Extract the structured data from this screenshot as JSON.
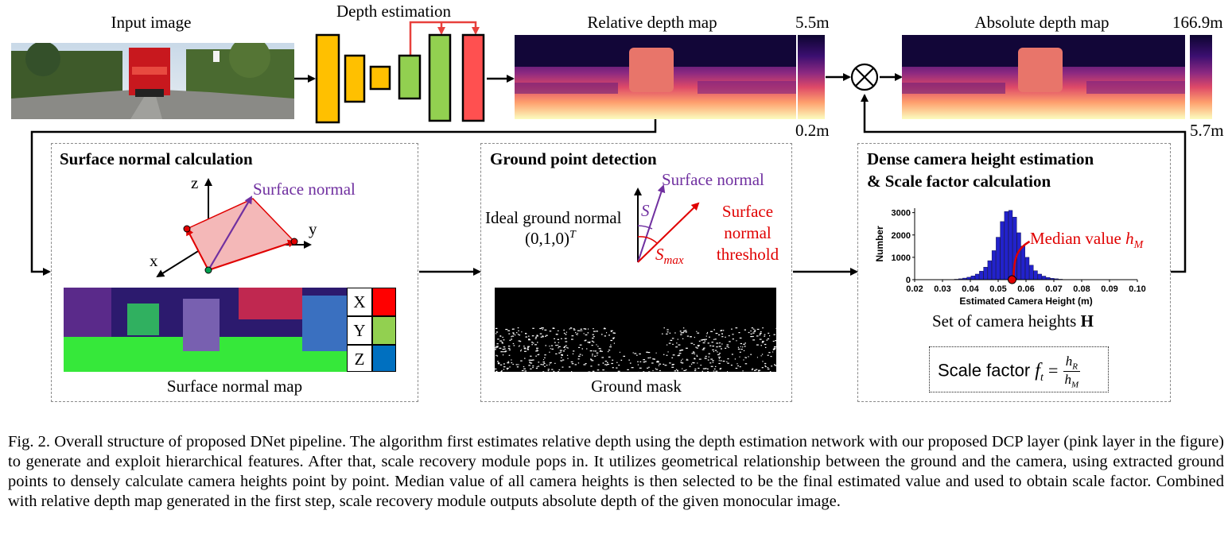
{
  "top": {
    "input_image": "Input image",
    "depth_estimation": "Depth estimation",
    "relative_depth_map": "Relative depth map",
    "relative_max": "5.5m",
    "relative_min": "0.2m",
    "absolute_depth_map": "Absolute depth map",
    "absolute_max": "166.9m",
    "absolute_min": "5.7m",
    "multiply_symbol": "⊗"
  },
  "surface_normal": {
    "title": "Surface normal calculation",
    "axis_z": "z",
    "axis_y": "y",
    "axis_x": "x",
    "normal_label": "Surface normal",
    "map_label": "Surface normal map",
    "legend": [
      {
        "letter": "X",
        "color": "#ff0000"
      },
      {
        "letter": "Y",
        "color": "#92d050"
      },
      {
        "letter": "Z",
        "color": "#0070c0"
      }
    ]
  },
  "ground_point": {
    "title": "Ground point detection",
    "ideal_normal": "Ideal ground normal",
    "ideal_vector": "(0,1,0)",
    "ideal_sup": "T",
    "surface_normal": "Surface normal",
    "s_label": "S",
    "smax_label": "S",
    "smax_sub": "max",
    "threshold_line1": "Surface",
    "threshold_line2": "normal",
    "threshold_line3": "threshold",
    "mask_label": "Ground mask"
  },
  "camera_height": {
    "title_line1": "Dense camera height estimation",
    "title_line2": "& Scale factor calculation",
    "median_label": "Median value",
    "median_symbol": "h",
    "median_sub": "M",
    "set_label": "Set of camera heights",
    "set_symbol": "H",
    "scale_label": "Scale factor",
    "scale_symbol": "f",
    "scale_sub": "t",
    "frac_num": "h",
    "frac_num_sub": "R",
    "frac_den": "h",
    "frac_den_sub": "M"
  },
  "chart_data": {
    "type": "bar",
    "xlabel": "Estimated Camera Height (m)",
    "ylabel": "Number",
    "xlim": [
      0.02,
      0.1
    ],
    "ylim": [
      0,
      3200
    ],
    "xticks": [
      "0.02",
      "0.03",
      "0.04",
      "0.05",
      "0.06",
      "0.07",
      "0.08",
      "0.09",
      "0.10"
    ],
    "yticks": [
      "0",
      "1000",
      "2000",
      "3000"
    ],
    "bin_width": 0.0015,
    "x": [
      0.035,
      0.0365,
      0.038,
      0.0395,
      0.041,
      0.0425,
      0.044,
      0.0455,
      0.047,
      0.0485,
      0.05,
      0.0515,
      0.053,
      0.0545,
      0.056,
      0.0575,
      0.059,
      0.0605,
      0.062,
      0.0635,
      0.065,
      0.0665,
      0.068,
      0.0695,
      0.071,
      0.0725,
      0.074
    ],
    "values": [
      20,
      40,
      70,
      110,
      170,
      250,
      380,
      560,
      850,
      1300,
      1900,
      2600,
      3050,
      3100,
      2800,
      2100,
      1500,
      1000,
      650,
      400,
      250,
      160,
      100,
      60,
      40,
      20,
      10
    ],
    "median": 0.055,
    "color": "#2222cc"
  },
  "caption": "Fig. 2.   Overall structure of proposed DNet pipeline. The algorithm first estimates relative depth using the depth estimation network with our proposed DCP layer (pink layer in the figure) to generate and exploit hierarchical features. After that, scale recovery module pops in. It utilizes geometrical relationship between the ground and the camera, using extracted ground points to densely calculate camera heights point by point. Median value of all camera heights is then selected to be the final estimated value and used to obtain scale factor. Combined with relative depth map generated in the first step, scale recovery module outputs absolute depth of the given monocular image."
}
